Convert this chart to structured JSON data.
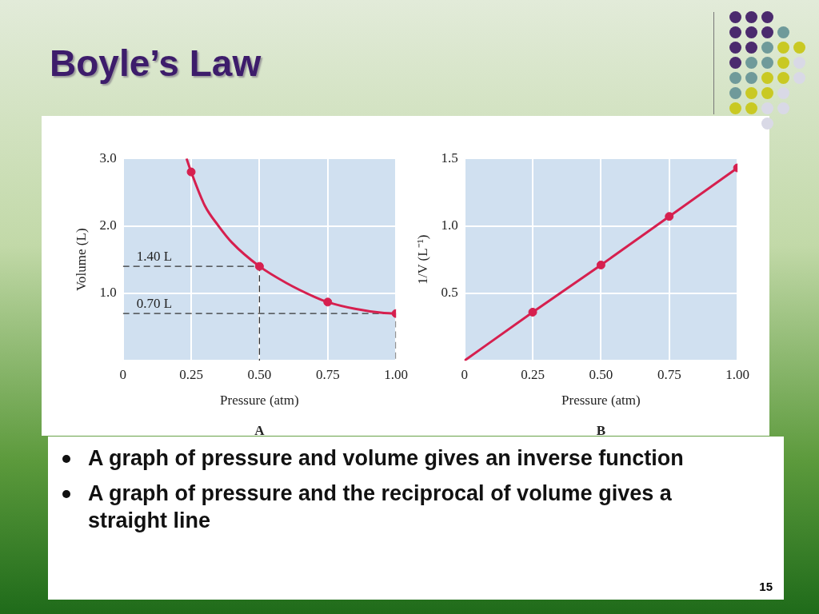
{
  "chart_data": [
    {
      "type": "other",
      "title": "Boyle’s Law"
    },
    {
      "type": "line",
      "xlabel": "Pressure (atm)",
      "ylabel": "Volume (L)",
      "xlim": [
        0,
        1.0
      ],
      "ylim": [
        0,
        3.0
      ],
      "xticks": [
        0,
        {
          "value": 0.25,
          "label": "0.25"
        },
        {
          "value": 0.5,
          "label": "0.50"
        },
        {
          "value": 0.75,
          "label": "0.75"
        },
        {
          "value": 1.0,
          "label": "1.00"
        }
      ],
      "yticks": [
        {
          "value": 0,
          "label": null
        },
        {
          "value": 1.0,
          "label": "1.0"
        },
        {
          "value": 2.0,
          "label": "2.0"
        },
        {
          "value": 3.0,
          "label": "3.0"
        }
      ],
      "grid": true,
      "series": [
        {
          "type": "line",
          "marker": "none",
          "color": "#d6204f",
          "x": [
            0.233,
            0.25,
            0.3,
            0.35,
            0.4,
            0.5,
            0.6,
            0.7,
            0.75,
            0.85,
            0.95,
            1.0
          ],
          "values": [
            3.0,
            2.8,
            2.3,
            2.0,
            1.75,
            1.4,
            1.15,
            0.95,
            0.87,
            0.77,
            0.71,
            0.7
          ]
        },
        {
          "type": "scatter",
          "marker": "circle",
          "color": "#d6204f",
          "x": [
            0.25,
            0.5,
            0.75,
            1.0
          ],
          "values": [
            2.8,
            1.4,
            0.87,
            0.7
          ]
        },
        {
          "type": "line",
          "marker": "none",
          "line_style": "dashed",
          "color": "#333333",
          "x": [
            0,
            0.5,
            0.5
          ],
          "values": [
            1.4,
            1.4,
            0
          ]
        },
        {
          "type": "line",
          "marker": "none",
          "line_style": "dashed",
          "color": "#333333",
          "x": [
            0,
            1.0,
            1.0
          ],
          "values": [
            0.7,
            0.7,
            0
          ]
        }
      ],
      "annotations": [
        {
          "text": "1.40 L",
          "x": 0.05,
          "y": 1.4
        },
        {
          "text": "0.70 L",
          "x": 0.05,
          "y": 0.7
        },
        "A"
      ]
    },
    {
      "type": "line",
      "xlabel": "Pressure (atm)",
      "ylabel": "1/V (L⁻¹)",
      "xlim": [
        0,
        1.0
      ],
      "ylim": [
        0,
        1.5
      ],
      "xticks": [
        0,
        {
          "value": 0.25,
          "label": "0.25"
        },
        {
          "value": 0.5,
          "label": "0.50"
        },
        {
          "value": 0.75,
          "label": "0.75"
        },
        {
          "value": 1.0,
          "label": "1.00"
        }
      ],
      "yticks": [
        {
          "value": 0,
          "label": null
        },
        {
          "value": 0.5,
          "label": "0.5"
        },
        {
          "value": 1.0,
          "label": "1.0"
        },
        {
          "value": 1.5,
          "label": "1.5"
        }
      ],
      "grid": true,
      "series": [
        {
          "type": "line",
          "marker": "none",
          "color": "#d6204f",
          "x": [
            0,
            0.25,
            0.5,
            0.75,
            1.0
          ],
          "values": [
            0,
            0.36,
            0.71,
            1.07,
            1.43
          ]
        },
        {
          "type": "scatter",
          "marker": "circle",
          "color": "#d6204f",
          "x": [
            0.25,
            0.5,
            0.75,
            1.0
          ],
          "values": [
            0.36,
            0.71,
            1.07,
            1.43
          ]
        }
      ],
      "annotations": [
        "B"
      ]
    },
    {
      "type": "other",
      "annotations": [
        "A graph of pressure and volume gives an inverse function",
        "A graph of pressure and the reciprocal of volume gives a straight line",
        "15"
      ]
    }
  ]
}
